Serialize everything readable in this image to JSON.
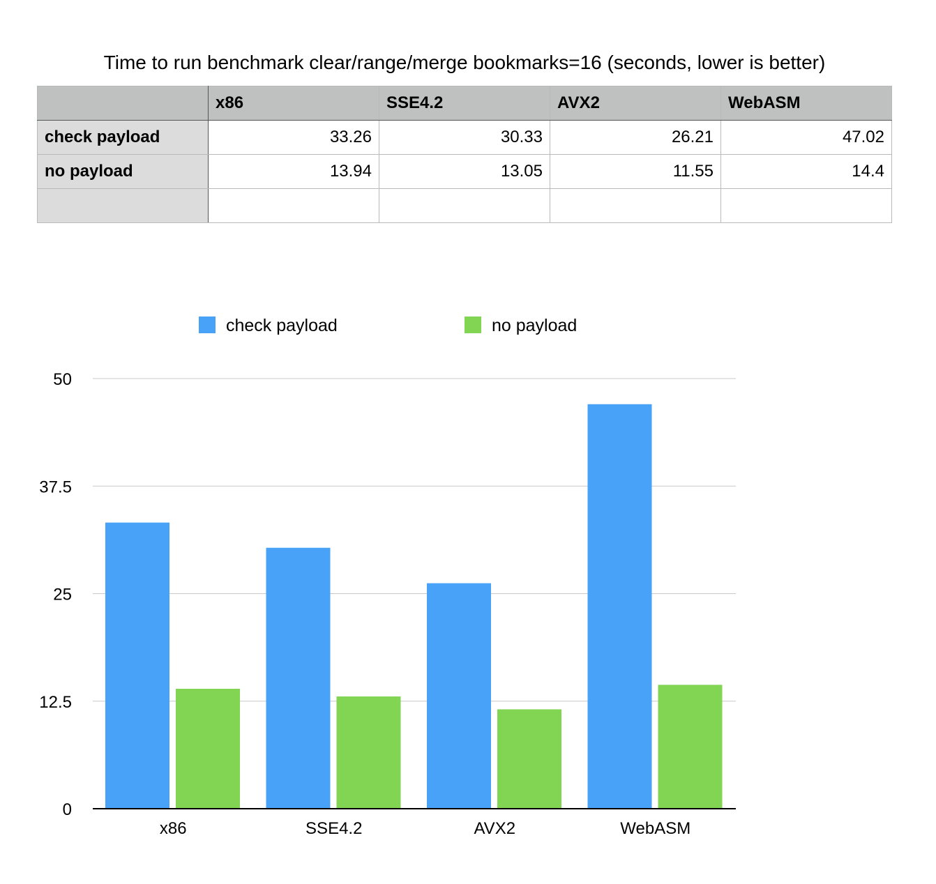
{
  "chart_data": {
    "type": "bar",
    "title": "Time to run benchmark clear/range/merge bookmarks=16 (seconds, lower is better)",
    "categories": [
      "x86",
      "SSE4.2",
      "AVX2",
      "WebASM"
    ],
    "series": [
      {
        "name": "check payload",
        "values": [
          33.26,
          30.33,
          26.21,
          47.02
        ],
        "color": "#47a2f8"
      },
      {
        "name": "no payload",
        "values": [
          13.94,
          13.05,
          11.55,
          14.4
        ],
        "color": "#82d453"
      }
    ],
    "ylim": [
      0,
      50
    ],
    "yticks": [
      "0",
      "12.5",
      "25",
      "37.5",
      "50"
    ],
    "xlabel": "",
    "ylabel": "",
    "grid": true,
    "legend": "top"
  },
  "table": {
    "columns": [
      "",
      "x86",
      "SSE4.2",
      "AVX2",
      "WebASM"
    ],
    "rows": [
      {
        "label": "check payload",
        "cells": [
          "33.26",
          "30.33",
          "26.21",
          "47.02"
        ]
      },
      {
        "label": "no payload",
        "cells": [
          "13.94",
          "13.05",
          "11.55",
          "14.4"
        ]
      },
      {
        "label": "",
        "cells": [
          "",
          "",
          "",
          ""
        ]
      }
    ]
  }
}
